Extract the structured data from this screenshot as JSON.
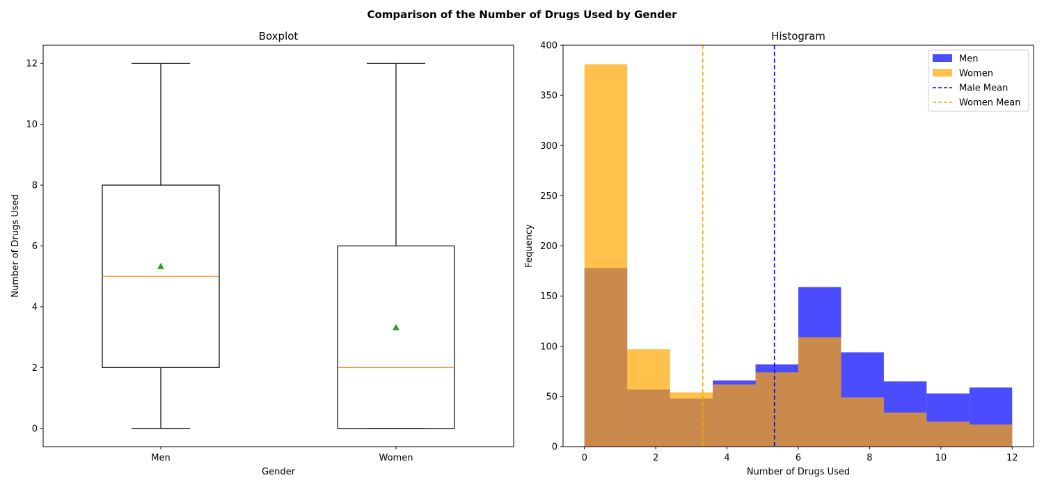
{
  "suptitle": "Comparison of the Number of Drugs Used by Gender",
  "chart_data": [
    {
      "type": "box",
      "title": "Boxplot",
      "xlabel": "Gender",
      "ylabel": "Number of Drugs Used",
      "categories": [
        "Men",
        "Women"
      ],
      "ylim": [
        -0.6,
        12.6
      ],
      "yticks": [
        0,
        2,
        4,
        6,
        8,
        10,
        12
      ],
      "boxes": [
        {
          "name": "Men",
          "whisker_low": 0,
          "q1": 2,
          "median": 5,
          "q3": 8,
          "whisker_high": 12,
          "mean": 5.33
        },
        {
          "name": "Women",
          "whisker_low": 0,
          "q1": 0,
          "median": 2,
          "q3": 6,
          "whisker_high": 12,
          "mean": 3.32
        }
      ],
      "colors": {
        "box": "#000000",
        "median": "#ff7f0e",
        "mean": "#2ca02c"
      }
    },
    {
      "type": "histogram",
      "title": "Histogram",
      "xlabel": "Number of Drugs Used",
      "ylabel": "Fequency",
      "xlim": [
        -0.6,
        12.6
      ],
      "ylim": [
        0,
        400
      ],
      "xticks": [
        0,
        2,
        4,
        6,
        8,
        10,
        12
      ],
      "yticks": [
        0,
        50,
        100,
        150,
        200,
        250,
        300,
        350,
        400
      ],
      "bin_edges": [
        0,
        1.2,
        2.4,
        3.6,
        4.8,
        6.0,
        7.2,
        8.4,
        9.6,
        10.8,
        12.0
      ],
      "series": [
        {
          "name": "Men",
          "color": "#0000ff",
          "alpha": 0.7,
          "values": [
            178,
            57,
            48,
            66,
            82,
            159,
            94,
            65,
            53,
            59
          ]
        },
        {
          "name": "Women",
          "color": "#ffa500",
          "alpha": 0.7,
          "values": [
            381,
            97,
            54,
            62,
            74,
            109,
            49,
            34,
            25,
            22
          ]
        }
      ],
      "mean_lines": [
        {
          "name": "Male Mean",
          "value": 5.33,
          "color": "#0000ff"
        },
        {
          "name": "Women Mean",
          "value": 3.32,
          "color": "#ffa500"
        }
      ],
      "legend_position": "top-right"
    }
  ]
}
